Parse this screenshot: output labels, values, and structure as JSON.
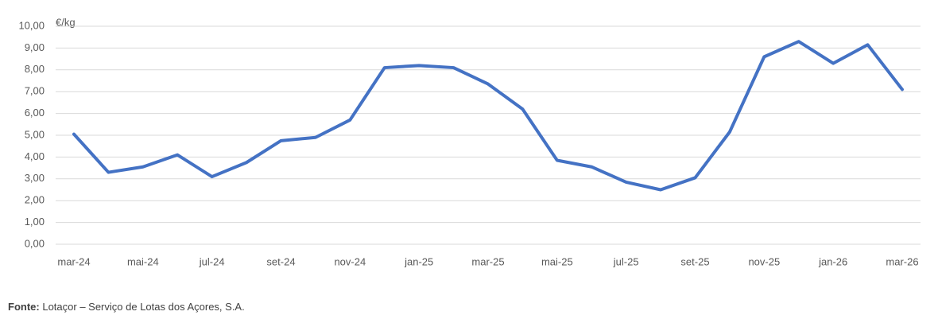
{
  "chart_data": {
    "type": "line",
    "y_unit": "€/kg",
    "categories": [
      "mar-24",
      null,
      "mai-24",
      null,
      "jul-24",
      null,
      "set-24",
      null,
      "nov-24",
      null,
      "jan-25",
      null,
      "mar-25",
      null,
      "mai-25",
      null,
      "jul-25",
      null,
      "set-25",
      null,
      "nov-25",
      null,
      "jan-26",
      null,
      "mar-26"
    ],
    "values": [
      5.05,
      3.3,
      3.55,
      4.1,
      3.1,
      3.75,
      4.75,
      4.9,
      5.7,
      8.1,
      8.2,
      8.1,
      7.35,
      6.2,
      3.85,
      3.55,
      2.85,
      2.5,
      3.05,
      5.15,
      8.6,
      9.3,
      8.3,
      9.15,
      7.1
    ],
    "color": "#4472c4",
    "ylim": [
      0,
      10
    ],
    "yticks": [
      {
        "value": 0,
        "label": "0,00"
      },
      {
        "value": 1,
        "label": "1,00"
      },
      {
        "value": 2,
        "label": "2,00"
      },
      {
        "value": 3,
        "label": "3,00"
      },
      {
        "value": 4,
        "label": "4,00"
      },
      {
        "value": 5,
        "label": "5,00"
      },
      {
        "value": 6,
        "label": "6,00"
      },
      {
        "value": 7,
        "label": "7,00"
      },
      {
        "value": 8,
        "label": "8,00"
      },
      {
        "value": 9,
        "label": "9,00"
      },
      {
        "value": 10,
        "label": "10,00"
      }
    ],
    "grid": true
  },
  "source": {
    "label": "Fonte:",
    "text": "Lotaçor – Serviço de Lotas dos Açores, S.A."
  }
}
